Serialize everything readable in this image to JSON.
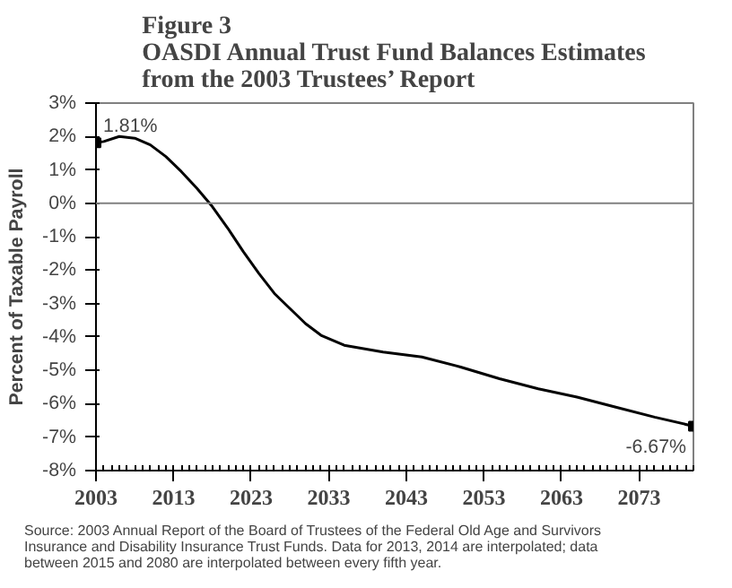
{
  "chart_data": {
    "type": "line",
    "title": "Figure 3\nOASDI Annual Trust Fund Balances Estimates\nfrom the 2003 Trustees’ Report",
    "ylabel": "Percent of Taxable Payroll",
    "x": [
      2003,
      2004,
      2006,
      2008,
      2010,
      2012,
      2014,
      2016,
      2018,
      2020,
      2022,
      2024,
      2026,
      2028,
      2030,
      2032,
      2035,
      2040,
      2045,
      2050,
      2055,
      2060,
      2065,
      2070,
      2075,
      2080
    ],
    "series": [
      {
        "color": "#000000",
        "values": [
          1.81,
          1.85,
          2.0,
          1.95,
          1.75,
          1.4,
          0.95,
          0.45,
          -0.1,
          -0.75,
          -1.45,
          -2.1,
          -2.7,
          -3.15,
          -3.6,
          -3.95,
          -4.25,
          -4.45,
          -4.6,
          -4.9,
          -5.25,
          -5.55,
          -5.8,
          -6.1,
          -6.4,
          -6.67
        ]
      }
    ],
    "xlim": [
      2003,
      2080
    ],
    "xticks": [
      2003,
      2013,
      2023,
      2033,
      2043,
      2053,
      2063,
      2073
    ],
    "ylim": [
      -8,
      3
    ],
    "yticks": [
      {
        "value": 3,
        "label": "3%"
      },
      {
        "value": 2,
        "label": "2%"
      },
      {
        "value": 1,
        "label": "1%"
      },
      {
        "value": 0,
        "label": "0%"
      },
      {
        "value": -1,
        "label": "-1%"
      },
      {
        "value": -2,
        "label": "-2%"
      },
      {
        "value": -3,
        "label": "-3%"
      },
      {
        "value": -4,
        "label": "-4%"
      },
      {
        "value": -5,
        "label": "-5%"
      },
      {
        "value": -6,
        "label": "-6%"
      },
      {
        "value": -7,
        "label": "-7%"
      },
      {
        "value": -8,
        "label": "-8%"
      }
    ],
    "ref_lines": [
      {
        "axis": "y",
        "value": 0,
        "color": "#808080"
      }
    ],
    "annotations": [
      {
        "text": "1.81%",
        "x": 2003,
        "y": 1.81
      },
      {
        "text": "-6.67%",
        "x": 2080,
        "y": -6.67
      },
      "Source: 2003 Annual Report of the Board of Trustees of the Federal Old Age and Survivors\nInsurance and Disability  Insurance Trust Funds.  Data for 2013, 2014 are interpolated; data\nbetween 2015 and 2080 are interpolated between every fifth year."
    ],
    "grid": false
  }
}
